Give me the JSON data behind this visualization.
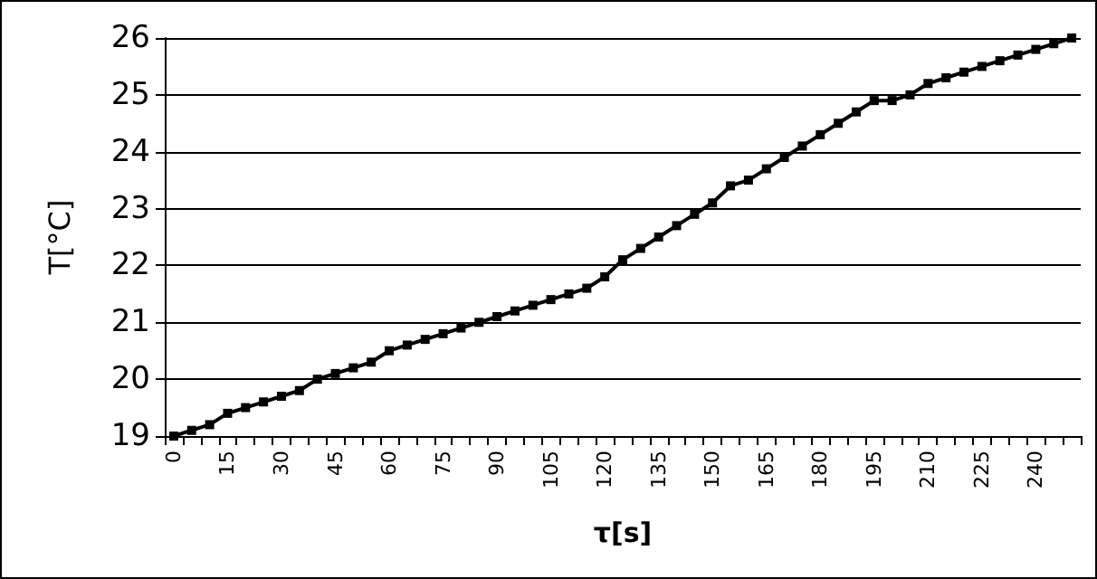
{
  "chart_data": {
    "type": "line",
    "xlabel": "τ[s]",
    "ylabel": "T[°C]",
    "categories": [
      "0",
      null,
      null,
      "15",
      null,
      null,
      "30",
      null,
      null,
      "45",
      null,
      null,
      "60",
      null,
      null,
      "75",
      null,
      null,
      "90",
      null,
      null,
      "105",
      null,
      null,
      "120",
      null,
      null,
      "135",
      null,
      null,
      "150",
      null,
      null,
      "165",
      null,
      null,
      "180",
      null,
      null,
      "195",
      null,
      null,
      "210",
      null,
      null,
      "225",
      null,
      null,
      "240",
      null,
      null
    ],
    "series": [
      {
        "color": "#000000",
        "values": [
          19.0,
          19.1,
          19.2,
          19.4,
          19.5,
          19.6,
          19.7,
          19.8,
          20.0,
          20.1,
          20.2,
          20.3,
          20.5,
          20.6,
          20.7,
          20.8,
          20.9,
          21.0,
          21.1,
          21.2,
          21.3,
          21.4,
          21.5,
          21.6,
          21.8,
          22.1,
          22.3,
          22.5,
          22.7,
          22.9,
          23.1,
          23.4,
          23.5,
          23.7,
          23.9,
          24.1,
          24.3,
          24.5,
          24.7,
          24.9,
          24.9,
          25.0,
          25.2,
          25.3,
          25.4,
          25.5,
          25.6,
          25.7,
          25.8,
          25.9,
          26.0
        ]
      }
    ],
    "ylim": [
      19,
      26
    ],
    "yticks": [
      19,
      20,
      21,
      22,
      23,
      24,
      25,
      26
    ],
    "grid": "y",
    "marker": "square",
    "line_style": "solid"
  }
}
